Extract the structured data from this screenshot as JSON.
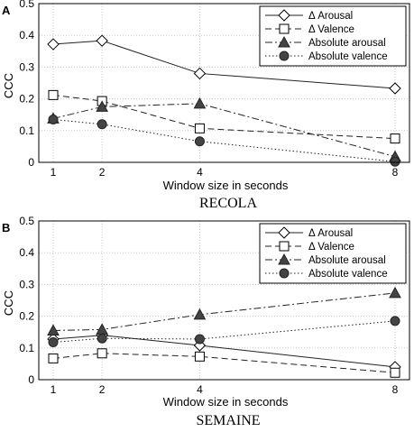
{
  "chart_data": [
    {
      "type": "line",
      "panel_label": "A",
      "caption": "RECOLA",
      "xlabel": "Window size in seconds",
      "ylabel": "CCC",
      "xticks": [
        1,
        2,
        4,
        8
      ],
      "yticks": [
        "0",
        "0.1",
        "0.2",
        "0.3",
        "0.4",
        "0.5"
      ],
      "ylim": [
        0,
        0.5
      ],
      "grid": true,
      "legend_position": "top-right",
      "x": [
        1,
        2,
        4,
        8
      ],
      "series": [
        {
          "name": "Δ Arousal",
          "values": [
            0.372,
            0.383,
            0.28,
            0.233
          ],
          "marker": "diamond-open",
          "dash": "solid"
        },
        {
          "name": "Δ Valence",
          "values": [
            0.212,
            0.193,
            0.107,
            0.075
          ],
          "marker": "square-open",
          "dash": "dashed"
        },
        {
          "name": "Absolute arousal",
          "values": [
            0.138,
            0.175,
            0.185,
            0.018
          ],
          "marker": "triangle-filled",
          "dash": "dashdot"
        },
        {
          "name": "Absolute valence",
          "values": [
            0.135,
            0.12,
            0.066,
            0.002
          ],
          "marker": "circle-filled",
          "dash": "dotted"
        }
      ]
    },
    {
      "type": "line",
      "panel_label": "B",
      "caption": "SEMAINE",
      "xlabel": "Window size in seconds",
      "ylabel": "CCC",
      "xticks": [
        1,
        2,
        4,
        8
      ],
      "yticks": [
        "0",
        "0.1",
        "0.2",
        "0.3",
        "0.4",
        "0.5"
      ],
      "ylim": [
        0,
        0.5
      ],
      "grid": true,
      "legend_position": "top-right",
      "x": [
        1,
        2,
        4,
        8
      ],
      "series": [
        {
          "name": "Δ Arousal",
          "values": [
            0.128,
            0.14,
            0.108,
            0.04
          ],
          "marker": "diamond-open",
          "dash": "solid"
        },
        {
          "name": "Δ Valence",
          "values": [
            0.067,
            0.083,
            0.073,
            0.022
          ],
          "marker": "square-open",
          "dash": "dashed"
        },
        {
          "name": "Absolute arousal",
          "values": [
            0.155,
            0.158,
            0.205,
            0.273
          ],
          "marker": "triangle-filled",
          "dash": "dashdot"
        },
        {
          "name": "Absolute valence",
          "values": [
            0.118,
            0.13,
            0.128,
            0.185
          ],
          "marker": "circle-filled",
          "dash": "dotted"
        }
      ]
    }
  ]
}
